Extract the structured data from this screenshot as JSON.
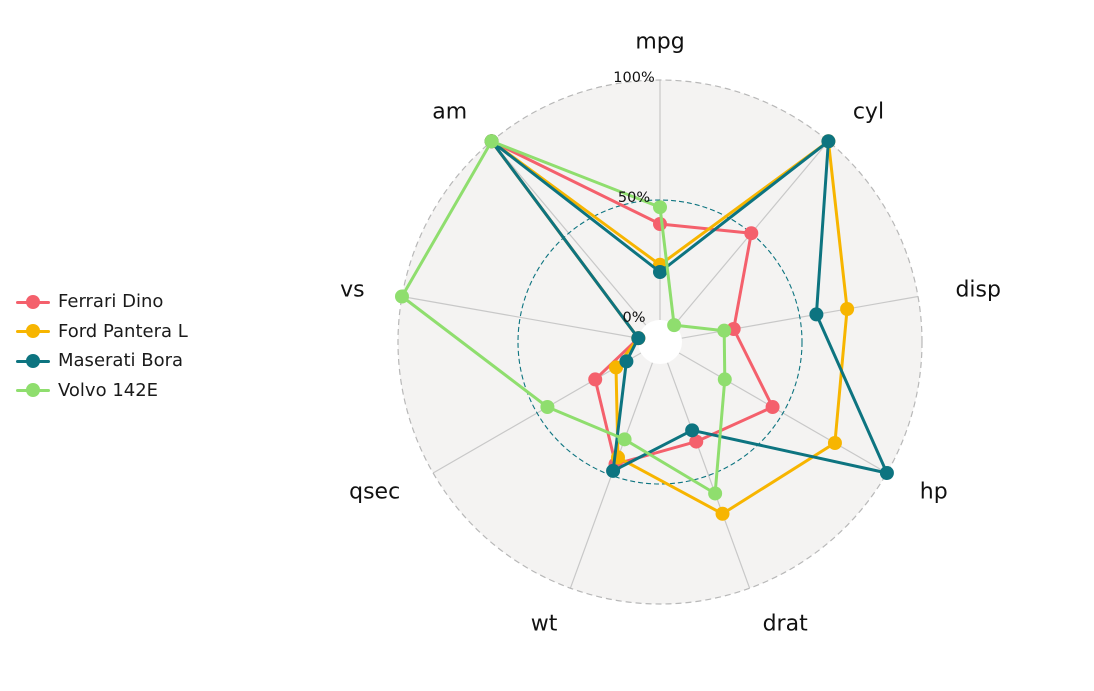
{
  "chart_data": {
    "type": "radar",
    "axes": [
      "mpg",
      "cyl",
      "disp",
      "hp",
      "drat",
      "wt",
      "qsec",
      "vs",
      "am"
    ],
    "grid_labels": [
      "0%",
      "50%",
      "100%"
    ],
    "range": [
      0,
      1
    ],
    "grid": true,
    "legend_position": "left",
    "series": [
      {
        "name": "Ferrari Dino",
        "color": "#F4606C",
        "values": [
          0.4,
          0.5,
          0.22,
          0.45,
          0.35,
          0.45,
          0.22,
          0.0,
          1.0
        ]
      },
      {
        "name": "Ford Pantera L",
        "color": "#F7B500",
        "values": [
          0.23,
          1.0,
          0.7,
          0.75,
          0.67,
          0.42,
          0.12,
          0.0,
          1.0
        ]
      },
      {
        "name": "Maserati Bora",
        "color": "#0D7480",
        "values": [
          0.2,
          1.0,
          0.57,
          1.0,
          0.3,
          0.48,
          0.07,
          0.0,
          1.0
        ]
      },
      {
        "name": "Volvo 142E",
        "color": "#8FDE6E",
        "values": [
          0.47,
          0.0,
          0.18,
          0.22,
          0.58,
          0.34,
          0.45,
          1.0,
          1.0
        ]
      }
    ]
  }
}
